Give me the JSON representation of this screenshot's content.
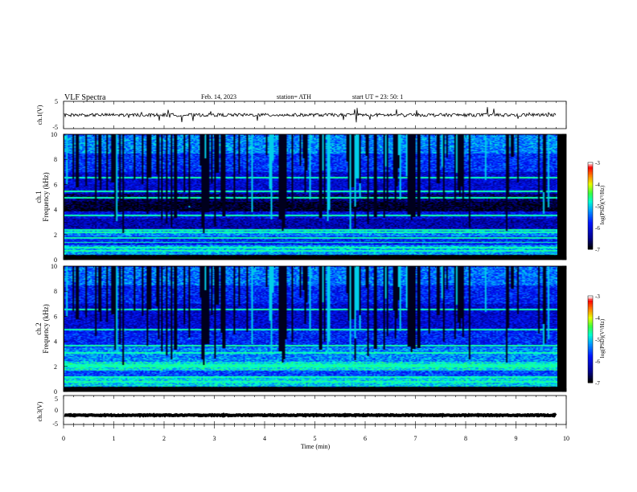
{
  "header": {
    "title": "VLF  Spectra",
    "date": "Feb. 14, 2023",
    "station": "station= ATH",
    "start": "start  UT  =    23: 50: 1"
  },
  "chart_data": [
    {
      "type": "line",
      "panel": "ch1-waveform",
      "ylabel": "ch.1(V)",
      "ylim": [
        -5,
        5
      ],
      "yticks": [
        "5",
        "-5"
      ],
      "xlim": [
        0,
        10
      ],
      "series": [
        {
          "baseline": 0,
          "noise_amplitude": 0.6,
          "spike_amplitude": 2.5
        }
      ]
    },
    {
      "type": "heatmap",
      "panel": "ch1-spectrogram",
      "ylabel": "Frequency (kHz)",
      "channel_label": "ch.1",
      "ylim": [
        0,
        10
      ],
      "yticks": [
        "0",
        "2",
        "4",
        "6",
        "8",
        "10"
      ],
      "xlim": [
        0,
        10
      ],
      "colorbar": {
        "label": "log(PSD)(V²/Hz)",
        "range": [
          -7,
          -3
        ],
        "ticks": [
          "-3",
          "-4",
          "-5",
          "-6",
          "-7"
        ]
      },
      "bands": [
        {
          "from": 0.0,
          "to": 0.3,
          "level": -7.0
        },
        {
          "from": 0.3,
          "to": 1.1,
          "level": -5.2
        },
        {
          "from": 1.1,
          "to": 1.8,
          "level": -5.8
        },
        {
          "from": 1.8,
          "to": 2.4,
          "level": -5.3
        },
        {
          "from": 2.4,
          "to": 3.2,
          "level": -6.3
        },
        {
          "from": 3.2,
          "to": 3.8,
          "level": -6.0
        },
        {
          "from": 3.8,
          "to": 4.6,
          "level": -6.9
        },
        {
          "from": 4.6,
          "to": 5.2,
          "level": -6.6
        },
        {
          "from": 5.2,
          "to": 7.0,
          "level": -6.1
        },
        {
          "from": 7.0,
          "to": 8.5,
          "level": -5.7
        },
        {
          "from": 8.5,
          "to": 10.0,
          "level": -5.3
        }
      ],
      "lines_khz": [
        0.6,
        0.9,
        1.3,
        1.65,
        2.1,
        2.3,
        3.5,
        4.9,
        5.4,
        6.5
      ]
    },
    {
      "type": "heatmap",
      "panel": "ch2-spectrogram",
      "ylabel": "Frequency (kHz)",
      "channel_label": "ch.2",
      "ylim": [
        0,
        10
      ],
      "yticks": [
        "0",
        "2",
        "4",
        "6",
        "8",
        "10"
      ],
      "xlim": [
        0,
        10
      ],
      "colorbar": {
        "label": "log(PSD)(V²/Hz)",
        "range": [
          -7,
          -3
        ],
        "ticks": [
          "-3",
          "-4",
          "-5",
          "-6",
          "-7"
        ]
      },
      "bands": [
        {
          "from": 0.0,
          "to": 0.3,
          "level": -7.0
        },
        {
          "from": 0.3,
          "to": 1.0,
          "level": -5.0
        },
        {
          "from": 1.0,
          "to": 1.6,
          "level": -5.6
        },
        {
          "from": 1.6,
          "to": 2.3,
          "level": -4.9
        },
        {
          "from": 2.3,
          "to": 3.5,
          "level": -5.3
        },
        {
          "from": 3.5,
          "to": 5.0,
          "level": -5.8
        },
        {
          "from": 5.0,
          "to": 7.0,
          "level": -6.1
        },
        {
          "from": 7.0,
          "to": 8.5,
          "level": -5.8
        },
        {
          "from": 8.5,
          "to": 10.0,
          "level": -5.4
        }
      ],
      "lines_khz": [
        0.7,
        1.05,
        1.9,
        2.05,
        3.0,
        3.6,
        4.9,
        6.5
      ]
    },
    {
      "type": "line",
      "panel": "ch3-waveform",
      "ylabel": "ch.3(V)",
      "ylim": [
        -5,
        5
      ],
      "yticks": [
        "5",
        "0",
        "-5"
      ],
      "xlim": [
        0,
        10
      ],
      "series": [
        {
          "baseline": -1.8,
          "noise_amplitude": 0.15
        }
      ]
    }
  ],
  "time_axis": {
    "xlabel": "Time  (min)",
    "ticks": [
      "0",
      "1",
      "2",
      "3",
      "4",
      "5",
      "6",
      "7",
      "8",
      "9",
      "10"
    ],
    "data_end_min": 9.8
  }
}
